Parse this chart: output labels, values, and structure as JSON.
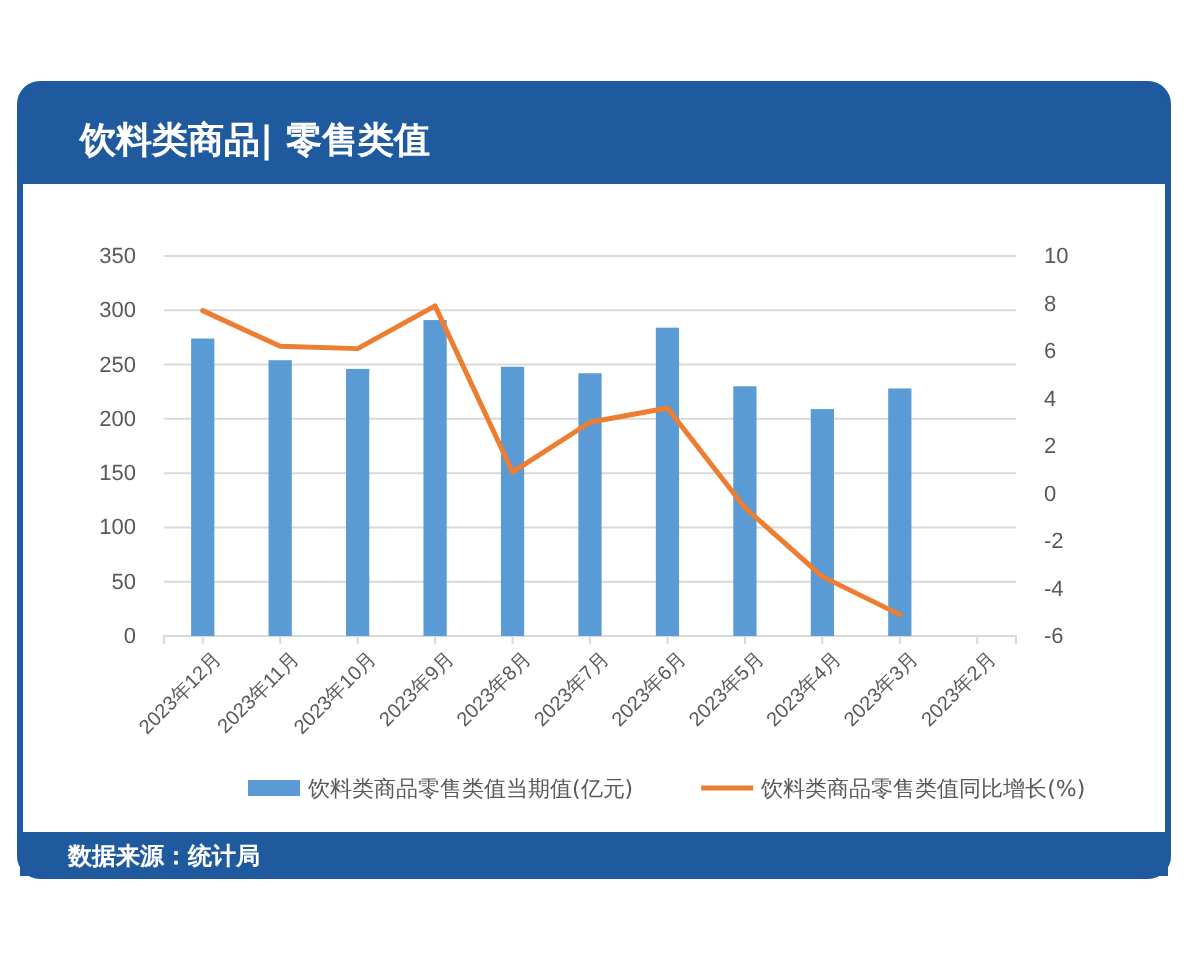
{
  "chart_data": {
    "type": "bar",
    "title": "饮料类商品| 零售类值",
    "categories": [
      "2023年12月",
      "2023年11月",
      "2023年10月",
      "2023年9月",
      "2023年8月",
      "2023年7月",
      "2023年6月",
      "2023年5月",
      "2023年4月",
      "2023年3月",
      "2023年2月"
    ],
    "series": [
      {
        "name": "饮料类商品零售类值当期值(亿元)",
        "color": "#5b9bd5",
        "values": [
          274,
          254,
          246,
          291,
          248,
          242,
          284,
          230,
          209,
          228,
          null
        ]
      },
      {
        "name": "饮料类商品零售类值同比增长(%)",
        "type": "line",
        "axis": "y2",
        "color": "#ed7d31",
        "values": [
          7.7,
          6.2,
          6.1,
          7.9,
          0.9,
          3.0,
          3.6,
          -0.6,
          -3.5,
          -5.1,
          null
        ]
      }
    ],
    "ylim": [
      0,
      350
    ],
    "yticks": [
      0,
      50,
      100,
      150,
      200,
      250,
      300,
      350
    ],
    "y2lim": [
      -6,
      10
    ],
    "y2ticks": [
      -6,
      -4,
      -2,
      0,
      2,
      4,
      6,
      8,
      10
    ],
    "grid": "y",
    "legend": "bottom",
    "marker": "none",
    "line_style": "solid",
    "annotations": [
      "数据来源：统计局"
    ]
  }
}
